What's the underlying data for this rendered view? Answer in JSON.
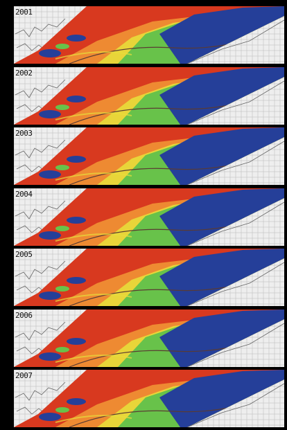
{
  "panels": [
    {
      "year": "2001"
    },
    {
      "year": "2002"
    },
    {
      "year": "2003"
    },
    {
      "year": "2004"
    },
    {
      "year": "2005"
    },
    {
      "year": "2006"
    },
    {
      "year": "2007"
    }
  ],
  "colors": {
    "background": "#000000",
    "grid": "#b9b9b9",
    "paper": "#eeeeee",
    "red": "#d8391f",
    "orange": "#ee8a32",
    "yellow": "#e7dd3a",
    "green": "#68c24a",
    "blue": "#253f99",
    "border": "#5a3b33"
  }
}
